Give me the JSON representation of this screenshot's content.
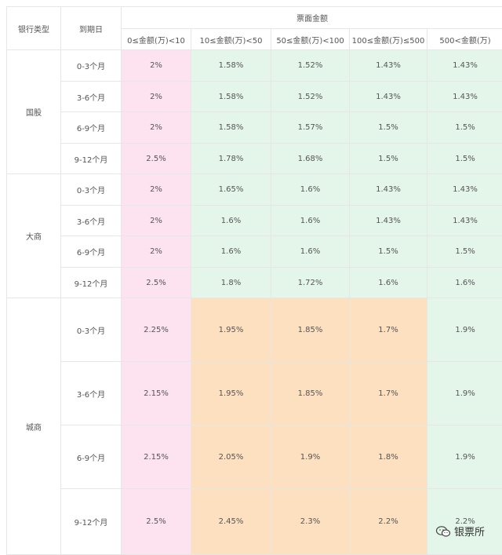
{
  "headers": {
    "bank_type": "银行类型",
    "maturity": "到期日",
    "face_amount": "票面金额",
    "ranges": [
      "0≤金额(万)<10",
      "10≤金额(万)<50",
      "50≤金额(万)<100",
      "100≤金额(万)≤500",
      "500<金额(万)"
    ]
  },
  "groups": [
    {
      "name": "国股",
      "rows": [
        {
          "term": "0-3个月",
          "rates": [
            "2%",
            "1.58%",
            "1.52%",
            "1.43%",
            "1.43%"
          ]
        },
        {
          "term": "3-6个月",
          "rates": [
            "2%",
            "1.58%",
            "1.52%",
            "1.43%",
            "1.43%"
          ]
        },
        {
          "term": "6-9个月",
          "rates": [
            "2%",
            "1.58%",
            "1.57%",
            "1.5%",
            "1.5%"
          ]
        },
        {
          "term": "9-12个月",
          "rates": [
            "2.5%",
            "1.78%",
            "1.68%",
            "1.5%",
            "1.5%"
          ]
        }
      ]
    },
    {
      "name": "大商",
      "rows": [
        {
          "term": "0-3个月",
          "rates": [
            "2%",
            "1.65%",
            "1.6%",
            "1.43%",
            "1.43%"
          ]
        },
        {
          "term": "3-6个月",
          "rates": [
            "2%",
            "1.6%",
            "1.6%",
            "1.43%",
            "1.43%"
          ]
        },
        {
          "term": "6-9个月",
          "rates": [
            "2%",
            "1.6%",
            "1.6%",
            "1.5%",
            "1.5%"
          ]
        },
        {
          "term": "9-12个月",
          "rates": [
            "2.5%",
            "1.8%",
            "1.72%",
            "1.6%",
            "1.6%"
          ]
        }
      ]
    },
    {
      "name": "城商",
      "rows": [
        {
          "term": "0-3个月",
          "rates": [
            "2.25%",
            "1.95%",
            "1.85%",
            "1.7%",
            "1.9%"
          ]
        },
        {
          "term": "3-6个月",
          "rates": [
            "2.15%",
            "1.95%",
            "1.85%",
            "1.7%",
            "1.9%"
          ]
        },
        {
          "term": "6-9个月",
          "rates": [
            "2.15%",
            "2.05%",
            "1.9%",
            "1.8%",
            "1.9%"
          ]
        },
        {
          "term": "9-12个月",
          "rates": [
            "2.5%",
            "2.45%",
            "2.3%",
            "2.2%",
            "2.2%"
          ]
        }
      ]
    }
  ],
  "colors": {
    "pink": "#fde3ef",
    "green": "#e4f6ea",
    "orange": "#fde0c0",
    "border": "#e6e6e6",
    "text": "#555555"
  },
  "watermark": {
    "text": "银票所",
    "icon": "wechat-icon"
  }
}
